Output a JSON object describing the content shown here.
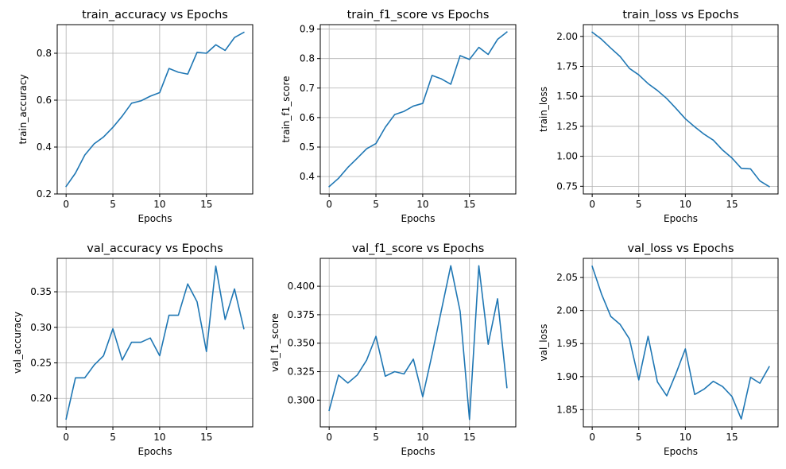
{
  "style": {
    "line_color": "#1f77b4",
    "grid": true
  },
  "chart_data": [
    {
      "type": "line",
      "title": "train_accuracy vs Epochs",
      "xlabel": "Epochs",
      "ylabel": "train_accuracy",
      "x": [
        0,
        1,
        2,
        3,
        4,
        5,
        6,
        7,
        8,
        9,
        10,
        11,
        12,
        13,
        14,
        15,
        16,
        17,
        18,
        19
      ],
      "series": [
        {
          "values": [
            0.232,
            0.289,
            0.366,
            0.414,
            0.443,
            0.484,
            0.532,
            0.587,
            0.597,
            0.617,
            0.632,
            0.735,
            0.719,
            0.711,
            0.804,
            0.8,
            0.836,
            0.812,
            0.867,
            0.889
          ]
        }
      ],
      "xlim": [
        -0.95,
        19.95
      ],
      "ylim": [
        0.2,
        0.922
      ],
      "xticks": [
        0,
        5,
        10,
        15
      ],
      "yticks": [
        0.2,
        0.4,
        0.6,
        0.8
      ],
      "xtick_labels": [
        "0",
        "5",
        "10",
        "15"
      ],
      "ytick_labels": [
        "0.2",
        "0.4",
        "0.6",
        "0.8"
      ]
    },
    {
      "type": "line",
      "title": "train_f1_score vs Epochs",
      "xlabel": "Epochs",
      "ylabel": "train_f1_score",
      "x": [
        0,
        1,
        2,
        3,
        4,
        5,
        6,
        7,
        8,
        9,
        10,
        11,
        12,
        13,
        14,
        15,
        16,
        17,
        18,
        19
      ],
      "series": [
        {
          "values": [
            0.366,
            0.394,
            0.431,
            0.462,
            0.494,
            0.512,
            0.567,
            0.61,
            0.621,
            0.639,
            0.648,
            0.743,
            0.731,
            0.713,
            0.81,
            0.797,
            0.838,
            0.814,
            0.865,
            0.89
          ]
        }
      ],
      "xlim": [
        -0.95,
        19.95
      ],
      "ylim": [
        0.341,
        0.915
      ],
      "xticks": [
        0,
        5,
        10,
        15
      ],
      "yticks": [
        0.4,
        0.5,
        0.6,
        0.7,
        0.8,
        0.9
      ],
      "xtick_labels": [
        "0",
        "5",
        "10",
        "15"
      ],
      "ytick_labels": [
        "0.4",
        "0.5",
        "0.6",
        "0.7",
        "0.8",
        "0.9"
      ]
    },
    {
      "type": "line",
      "title": "train_loss vs Epochs",
      "xlabel": "Epochs",
      "ylabel": "train_loss",
      "x": [
        0,
        1,
        2,
        3,
        4,
        5,
        6,
        7,
        8,
        9,
        10,
        11,
        12,
        13,
        14,
        15,
        16,
        17,
        18,
        19
      ],
      "series": [
        {
          "values": [
            2.035,
            1.976,
            1.902,
            1.832,
            1.733,
            1.679,
            1.606,
            1.549,
            1.482,
            1.399,
            1.313,
            1.246,
            1.185,
            1.135,
            1.052,
            0.986,
            0.9,
            0.895,
            0.795,
            0.747
          ]
        }
      ],
      "xlim": [
        -0.95,
        19.95
      ],
      "ylim": [
        0.686,
        2.098
      ],
      "xticks": [
        0,
        5,
        10,
        15
      ],
      "yticks": [
        0.75,
        1.0,
        1.25,
        1.5,
        1.75,
        2.0
      ],
      "xtick_labels": [
        "0",
        "5",
        "10",
        "15"
      ],
      "ytick_labels": [
        "0.75",
        "1.00",
        "1.25",
        "1.50",
        "1.75",
        "2.00"
      ]
    },
    {
      "type": "line",
      "title": "val_accuracy vs Epochs",
      "xlabel": "Epochs",
      "ylabel": "val_accuracy",
      "x": [
        0,
        1,
        2,
        3,
        4,
        5,
        6,
        7,
        8,
        9,
        10,
        11,
        12,
        13,
        14,
        15,
        16,
        17,
        18,
        19
      ],
      "series": [
        {
          "values": [
            0.171,
            0.229,
            0.229,
            0.247,
            0.26,
            0.298,
            0.254,
            0.279,
            0.279,
            0.285,
            0.26,
            0.317,
            0.317,
            0.361,
            0.336,
            0.266,
            0.386,
            0.311,
            0.354,
            0.298
          ]
        }
      ],
      "xlim": [
        -0.95,
        19.95
      ],
      "ylim": [
        0.16,
        0.397
      ],
      "xticks": [
        0,
        5,
        10,
        15
      ],
      "yticks": [
        0.2,
        0.25,
        0.3,
        0.35
      ],
      "xtick_labels": [
        "0",
        "5",
        "10",
        "15"
      ],
      "ytick_labels": [
        "0.20",
        "0.25",
        "0.30",
        "0.35"
      ]
    },
    {
      "type": "line",
      "title": "val_f1_score vs Epochs",
      "xlabel": "Epochs",
      "ylabel": "val_f1_score",
      "x": [
        0,
        1,
        2,
        3,
        4,
        5,
        6,
        7,
        8,
        9,
        10,
        11,
        12,
        13,
        14,
        15,
        16,
        17,
        18,
        19
      ],
      "series": [
        {
          "values": [
            0.291,
            0.322,
            0.315,
            0.322,
            0.335,
            0.356,
            0.321,
            0.325,
            0.323,
            0.336,
            0.303,
            0.34,
            0.379,
            0.418,
            0.378,
            0.283,
            0.418,
            0.349,
            0.389,
            0.311
          ]
        }
      ],
      "xlim": [
        -0.95,
        19.95
      ],
      "ylim": [
        0.2765,
        0.4245
      ],
      "xticks": [
        0,
        5,
        10,
        15
      ],
      "yticks": [
        0.3,
        0.325,
        0.35,
        0.375,
        0.4
      ],
      "xtick_labels": [
        "0",
        "5",
        "10",
        "15"
      ],
      "ytick_labels": [
        "0.300",
        "0.325",
        "0.350",
        "0.375",
        "0.400"
      ]
    },
    {
      "type": "line",
      "title": "val_loss vs Epochs",
      "xlabel": "Epochs",
      "ylabel": "val_loss",
      "x": [
        0,
        1,
        2,
        3,
        4,
        5,
        6,
        7,
        8,
        9,
        10,
        11,
        12,
        13,
        14,
        15,
        16,
        17,
        18,
        19
      ],
      "series": [
        {
          "values": [
            2.067,
            2.025,
            1.991,
            1.979,
            1.957,
            1.895,
            1.961,
            1.892,
            1.871,
            1.905,
            1.942,
            1.873,
            1.881,
            1.893,
            1.885,
            1.87,
            1.836,
            1.899,
            1.89,
            1.915
          ]
        }
      ],
      "xlim": [
        -0.95,
        19.95
      ],
      "ylim": [
        1.824,
        2.079
      ],
      "xticks": [
        0,
        5,
        10,
        15
      ],
      "yticks": [
        1.85,
        1.9,
        1.95,
        2.0,
        2.05
      ],
      "xtick_labels": [
        "0",
        "5",
        "10",
        "15"
      ],
      "ytick_labels": [
        "1.85",
        "1.90",
        "1.95",
        "2.00",
        "2.05"
      ]
    }
  ]
}
